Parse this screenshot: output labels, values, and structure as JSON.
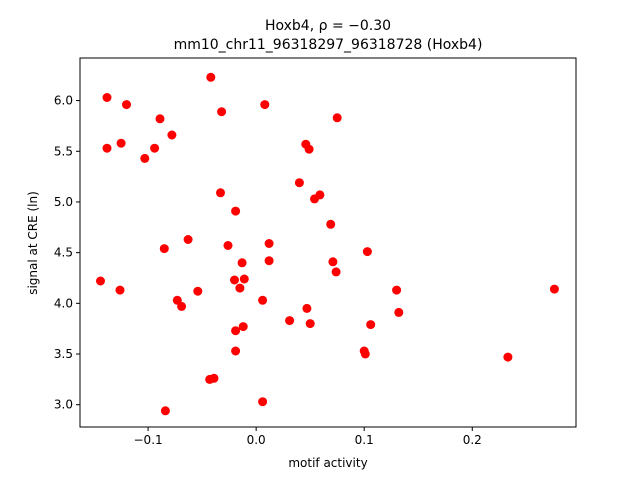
{
  "chart_data": {
    "type": "scatter",
    "title_line1": "Hoxb4, ρ = −0.30",
    "title_line2": "mm10_chr11_96318297_96318728 (Hoxb4)",
    "xlabel": "motif activity",
    "ylabel": "signal at CRE (ln)",
    "xlim": [
      -0.163,
      0.296
    ],
    "ylim": [
      2.78,
      6.42
    ],
    "xticks": [
      -0.1,
      0.0,
      0.1,
      0.2
    ],
    "xtick_labels": [
      "−0.1",
      "0.0",
      "0.1",
      "0.2"
    ],
    "yticks": [
      3.0,
      3.5,
      4.0,
      4.5,
      5.0,
      5.5,
      6.0
    ],
    "ytick_labels": [
      "3.0",
      "3.5",
      "4.0",
      "4.5",
      "5.0",
      "5.5",
      "6.0"
    ],
    "grid": false,
    "marker_color": "#ff0000",
    "points": [
      {
        "x": -0.042,
        "y": 6.23
      },
      {
        "x": -0.138,
        "y": 6.03
      },
      {
        "x": -0.12,
        "y": 5.96
      },
      {
        "x": 0.008,
        "y": 5.96
      },
      {
        "x": -0.032,
        "y": 5.89
      },
      {
        "x": -0.089,
        "y": 5.82
      },
      {
        "x": 0.075,
        "y": 5.83
      },
      {
        "x": -0.078,
        "y": 5.66
      },
      {
        "x": -0.125,
        "y": 5.58
      },
      {
        "x": -0.138,
        "y": 5.53
      },
      {
        "x": -0.094,
        "y": 5.53
      },
      {
        "x": 0.046,
        "y": 5.57
      },
      {
        "x": 0.049,
        "y": 5.52
      },
      {
        "x": -0.103,
        "y": 5.43
      },
      {
        "x": 0.04,
        "y": 5.19
      },
      {
        "x": -0.033,
        "y": 5.09
      },
      {
        "x": 0.059,
        "y": 5.07
      },
      {
        "x": 0.054,
        "y": 5.03
      },
      {
        "x": -0.019,
        "y": 4.91
      },
      {
        "x": 0.069,
        "y": 4.78
      },
      {
        "x": -0.063,
        "y": 4.63
      },
      {
        "x": 0.012,
        "y": 4.59
      },
      {
        "x": -0.026,
        "y": 4.57
      },
      {
        "x": -0.085,
        "y": 4.54
      },
      {
        "x": 0.103,
        "y": 4.51
      },
      {
        "x": 0.012,
        "y": 4.42
      },
      {
        "x": -0.013,
        "y": 4.4
      },
      {
        "x": 0.071,
        "y": 4.41
      },
      {
        "x": 0.074,
        "y": 4.31
      },
      {
        "x": -0.02,
        "y": 4.23
      },
      {
        "x": -0.011,
        "y": 4.24
      },
      {
        "x": -0.144,
        "y": 4.22
      },
      {
        "x": -0.015,
        "y": 4.15
      },
      {
        "x": -0.126,
        "y": 4.13
      },
      {
        "x": -0.054,
        "y": 4.12
      },
      {
        "x": 0.276,
        "y": 4.14
      },
      {
        "x": 0.13,
        "y": 4.13
      },
      {
        "x": -0.073,
        "y": 4.03
      },
      {
        "x": 0.006,
        "y": 4.03
      },
      {
        "x": -0.069,
        "y": 3.97
      },
      {
        "x": 0.047,
        "y": 3.95
      },
      {
        "x": 0.132,
        "y": 3.91
      },
      {
        "x": 0.031,
        "y": 3.83
      },
      {
        "x": 0.05,
        "y": 3.8
      },
      {
        "x": 0.106,
        "y": 3.79
      },
      {
        "x": -0.012,
        "y": 3.77
      },
      {
        "x": -0.019,
        "y": 3.73
      },
      {
        "x": -0.019,
        "y": 3.53
      },
      {
        "x": 0.1,
        "y": 3.53
      },
      {
        "x": 0.101,
        "y": 3.5
      },
      {
        "x": 0.233,
        "y": 3.47
      },
      {
        "x": -0.039,
        "y": 3.26
      },
      {
        "x": -0.043,
        "y": 3.25
      },
      {
        "x": 0.006,
        "y": 3.03
      },
      {
        "x": -0.084,
        "y": 2.94
      }
    ]
  }
}
